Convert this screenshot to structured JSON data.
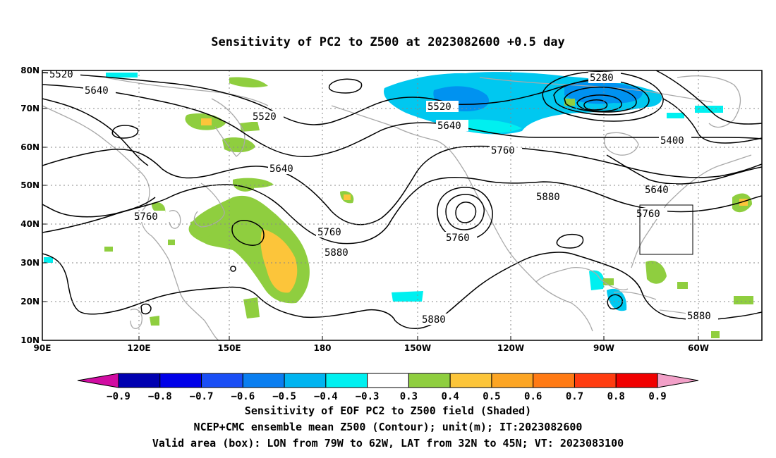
{
  "title": "Sensitivity of PC2 to Z500 at 2023082600 +0.5 day",
  "map": {
    "lat_axis_labels": [
      "80N",
      "70N",
      "60N",
      "50N",
      "40N",
      "30N",
      "20N",
      "10N"
    ],
    "lon_axis_labels": [
      "90E",
      "120E",
      "150E",
      "180",
      "150W",
      "120W",
      "90W",
      "60W"
    ],
    "contour_labels": [
      "5520",
      "5640",
      "5520",
      "5640",
      "5760",
      "5760",
      "5880",
      "5760",
      "5880",
      "5880",
      "5760",
      "5640",
      "5760",
      "5520",
      "5640",
      "5280",
      "5400",
      "5880"
    ],
    "valid_box": {
      "lon_range": [
        "79W",
        "62W"
      ],
      "lat_range": [
        "32N",
        "45N"
      ]
    },
    "colors": {
      "coast": "#a9a9a9",
      "contour": "#000000",
      "positive_03_04": "#8fce3f",
      "positive_04_05": "#fcc53a",
      "negative_03_04": "#00f0f0",
      "negative_04_05": "#00c8f0",
      "negative_05_06": "#0092f0"
    }
  },
  "colorbar": {
    "tick_labels": [
      "−0.9",
      "−0.8",
      "−0.7",
      "−0.6",
      "−0.5",
      "−0.4",
      "−0.3",
      "0.3",
      "0.4",
      "0.5",
      "0.6",
      "0.7",
      "0.8",
      "0.9"
    ],
    "bin_colors": [
      "#d10ca2",
      "#0000b0",
      "#0000e8",
      "#1a4ef5",
      "#0a7ef0",
      "#00b4f0",
      "#00f0f0",
      "#ffffff",
      "#8fce3f",
      "#fcc53a",
      "#fca524",
      "#ff7a14",
      "#ff3c10",
      "#f00000",
      "#f2a0c8"
    ]
  },
  "captions": {
    "line1": "Sensitivity of EOF PC2 to Z500 field (Shaded)",
    "line2": "NCEP+CMC ensemble mean Z500 (Contour); unit(m); IT:2023082600",
    "line3": "Valid area (box): LON from 79W to 62W, LAT from 32N to 45N; VT: 2023083100"
  }
}
